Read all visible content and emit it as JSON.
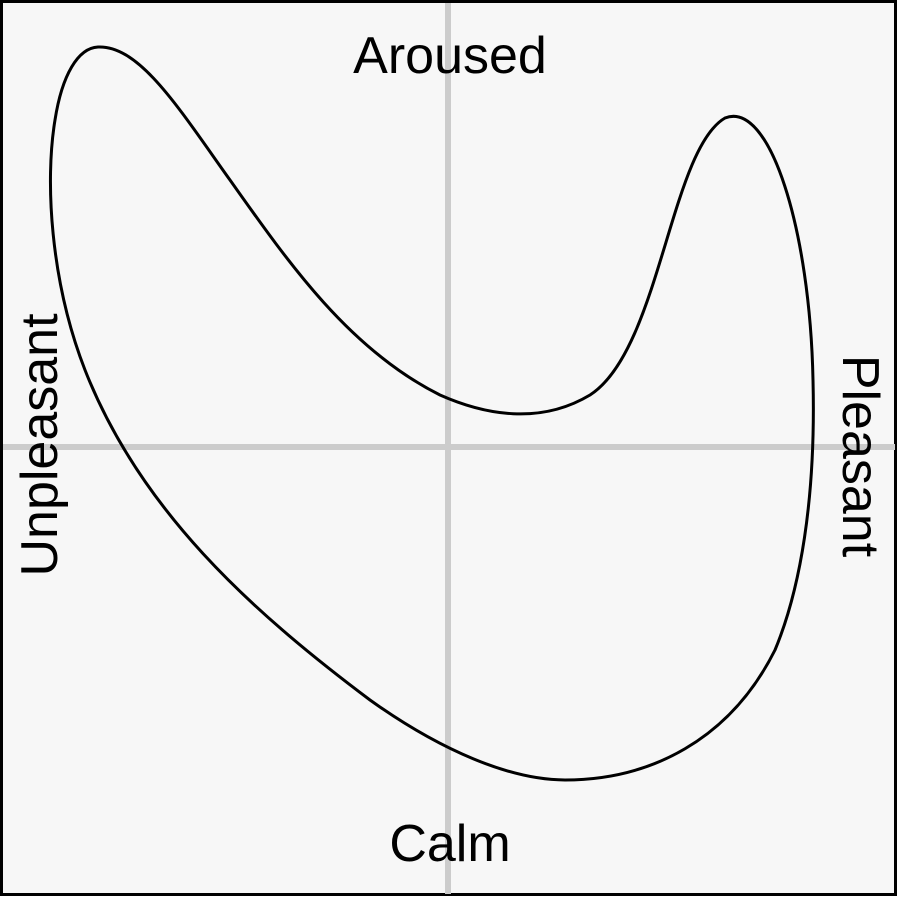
{
  "labels": {
    "top": "Aroused",
    "bottom": "Calm",
    "left": "Unpleasant",
    "right": "Pleasant"
  },
  "colors": {
    "background": "#f7f7f7",
    "frame": "#000000",
    "axes": "#cccccc",
    "curve": "#000000"
  }
}
